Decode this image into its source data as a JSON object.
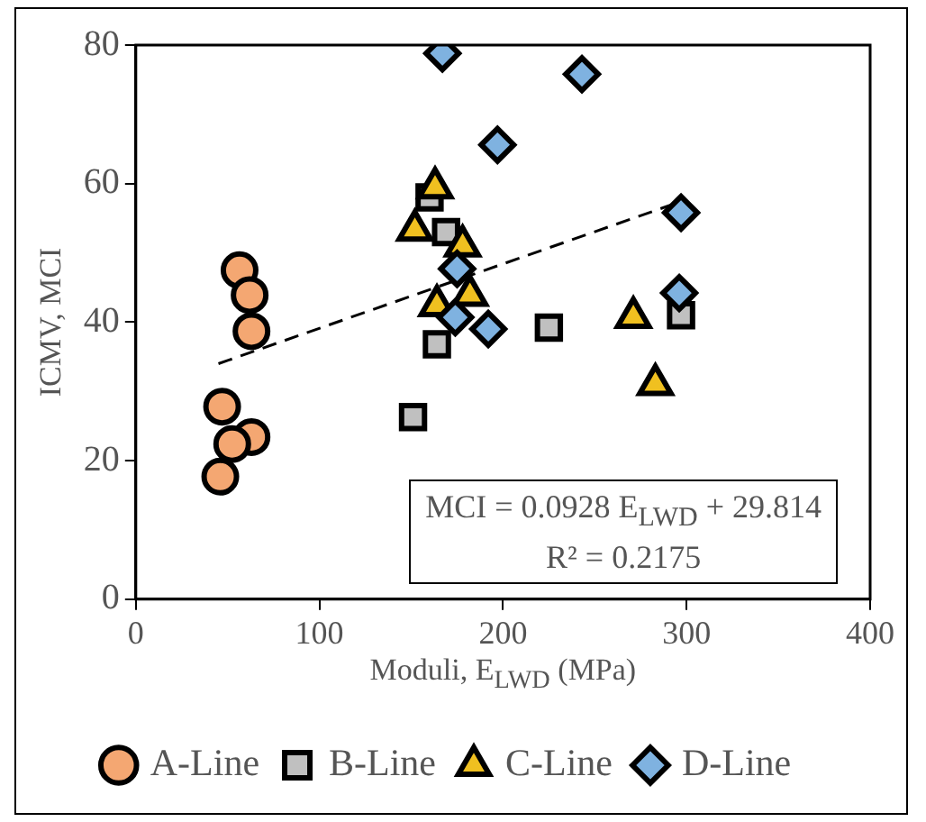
{
  "chart_data": {
    "type": "scatter",
    "xlabel": "Moduli, E$_{LWD}$ (MPa)",
    "ylabel": "ICMV, MCI",
    "xlim": [
      0,
      400
    ],
    "xticks": [
      0,
      100,
      200,
      300,
      400
    ],
    "ylim": [
      0,
      80
    ],
    "yticks": [
      0,
      20,
      40,
      60,
      80
    ],
    "grid": false,
    "legend": "bottom",
    "annotations": [
      "MCI = 0.0928  E$_{LWD}$ + 29.814",
      "R² = 0.2175"
    ],
    "series": [
      {
        "name": "A-Line",
        "color": "#f4a772",
        "marker": "circle",
        "x": [
          56.5,
          62,
          63,
          47,
          63,
          52.5,
          46
        ],
        "values": [
          47.5,
          43.9,
          38.7,
          27.8,
          23.4,
          22.4,
          17.7
        ]
      },
      {
        "name": "B-Line",
        "color": "#c0c0c0",
        "marker": "square",
        "x": [
          151,
          225,
          164,
          160,
          169,
          297
        ],
        "values": [
          26.3,
          39.2,
          36.8,
          58,
          53,
          41
        ]
      },
      {
        "name": "C-Line",
        "color": "#f0c020",
        "marker": "triangle",
        "x": [
          163,
          152,
          178,
          182,
          164,
          271,
          283
        ],
        "values": [
          59.4,
          53.3,
          51,
          43.9,
          42.4,
          40.7,
          31
        ]
      },
      {
        "name": "D-Line",
        "color": "#7fb2e0",
        "marker": "diamond",
        "x": [
          167,
          197,
          175,
          174,
          192,
          243,
          297,
          296
        ],
        "values": [
          78.8,
          65.6,
          47.7,
          40.7,
          39,
          75.8,
          55.8,
          44.2
        ]
      },
      {
        "type": "line",
        "color": "#000000",
        "marker": "none",
        "line_style": "dashed",
        "x": [
          45,
          300
        ],
        "values": [
          34,
          57.7
        ]
      }
    ]
  }
}
